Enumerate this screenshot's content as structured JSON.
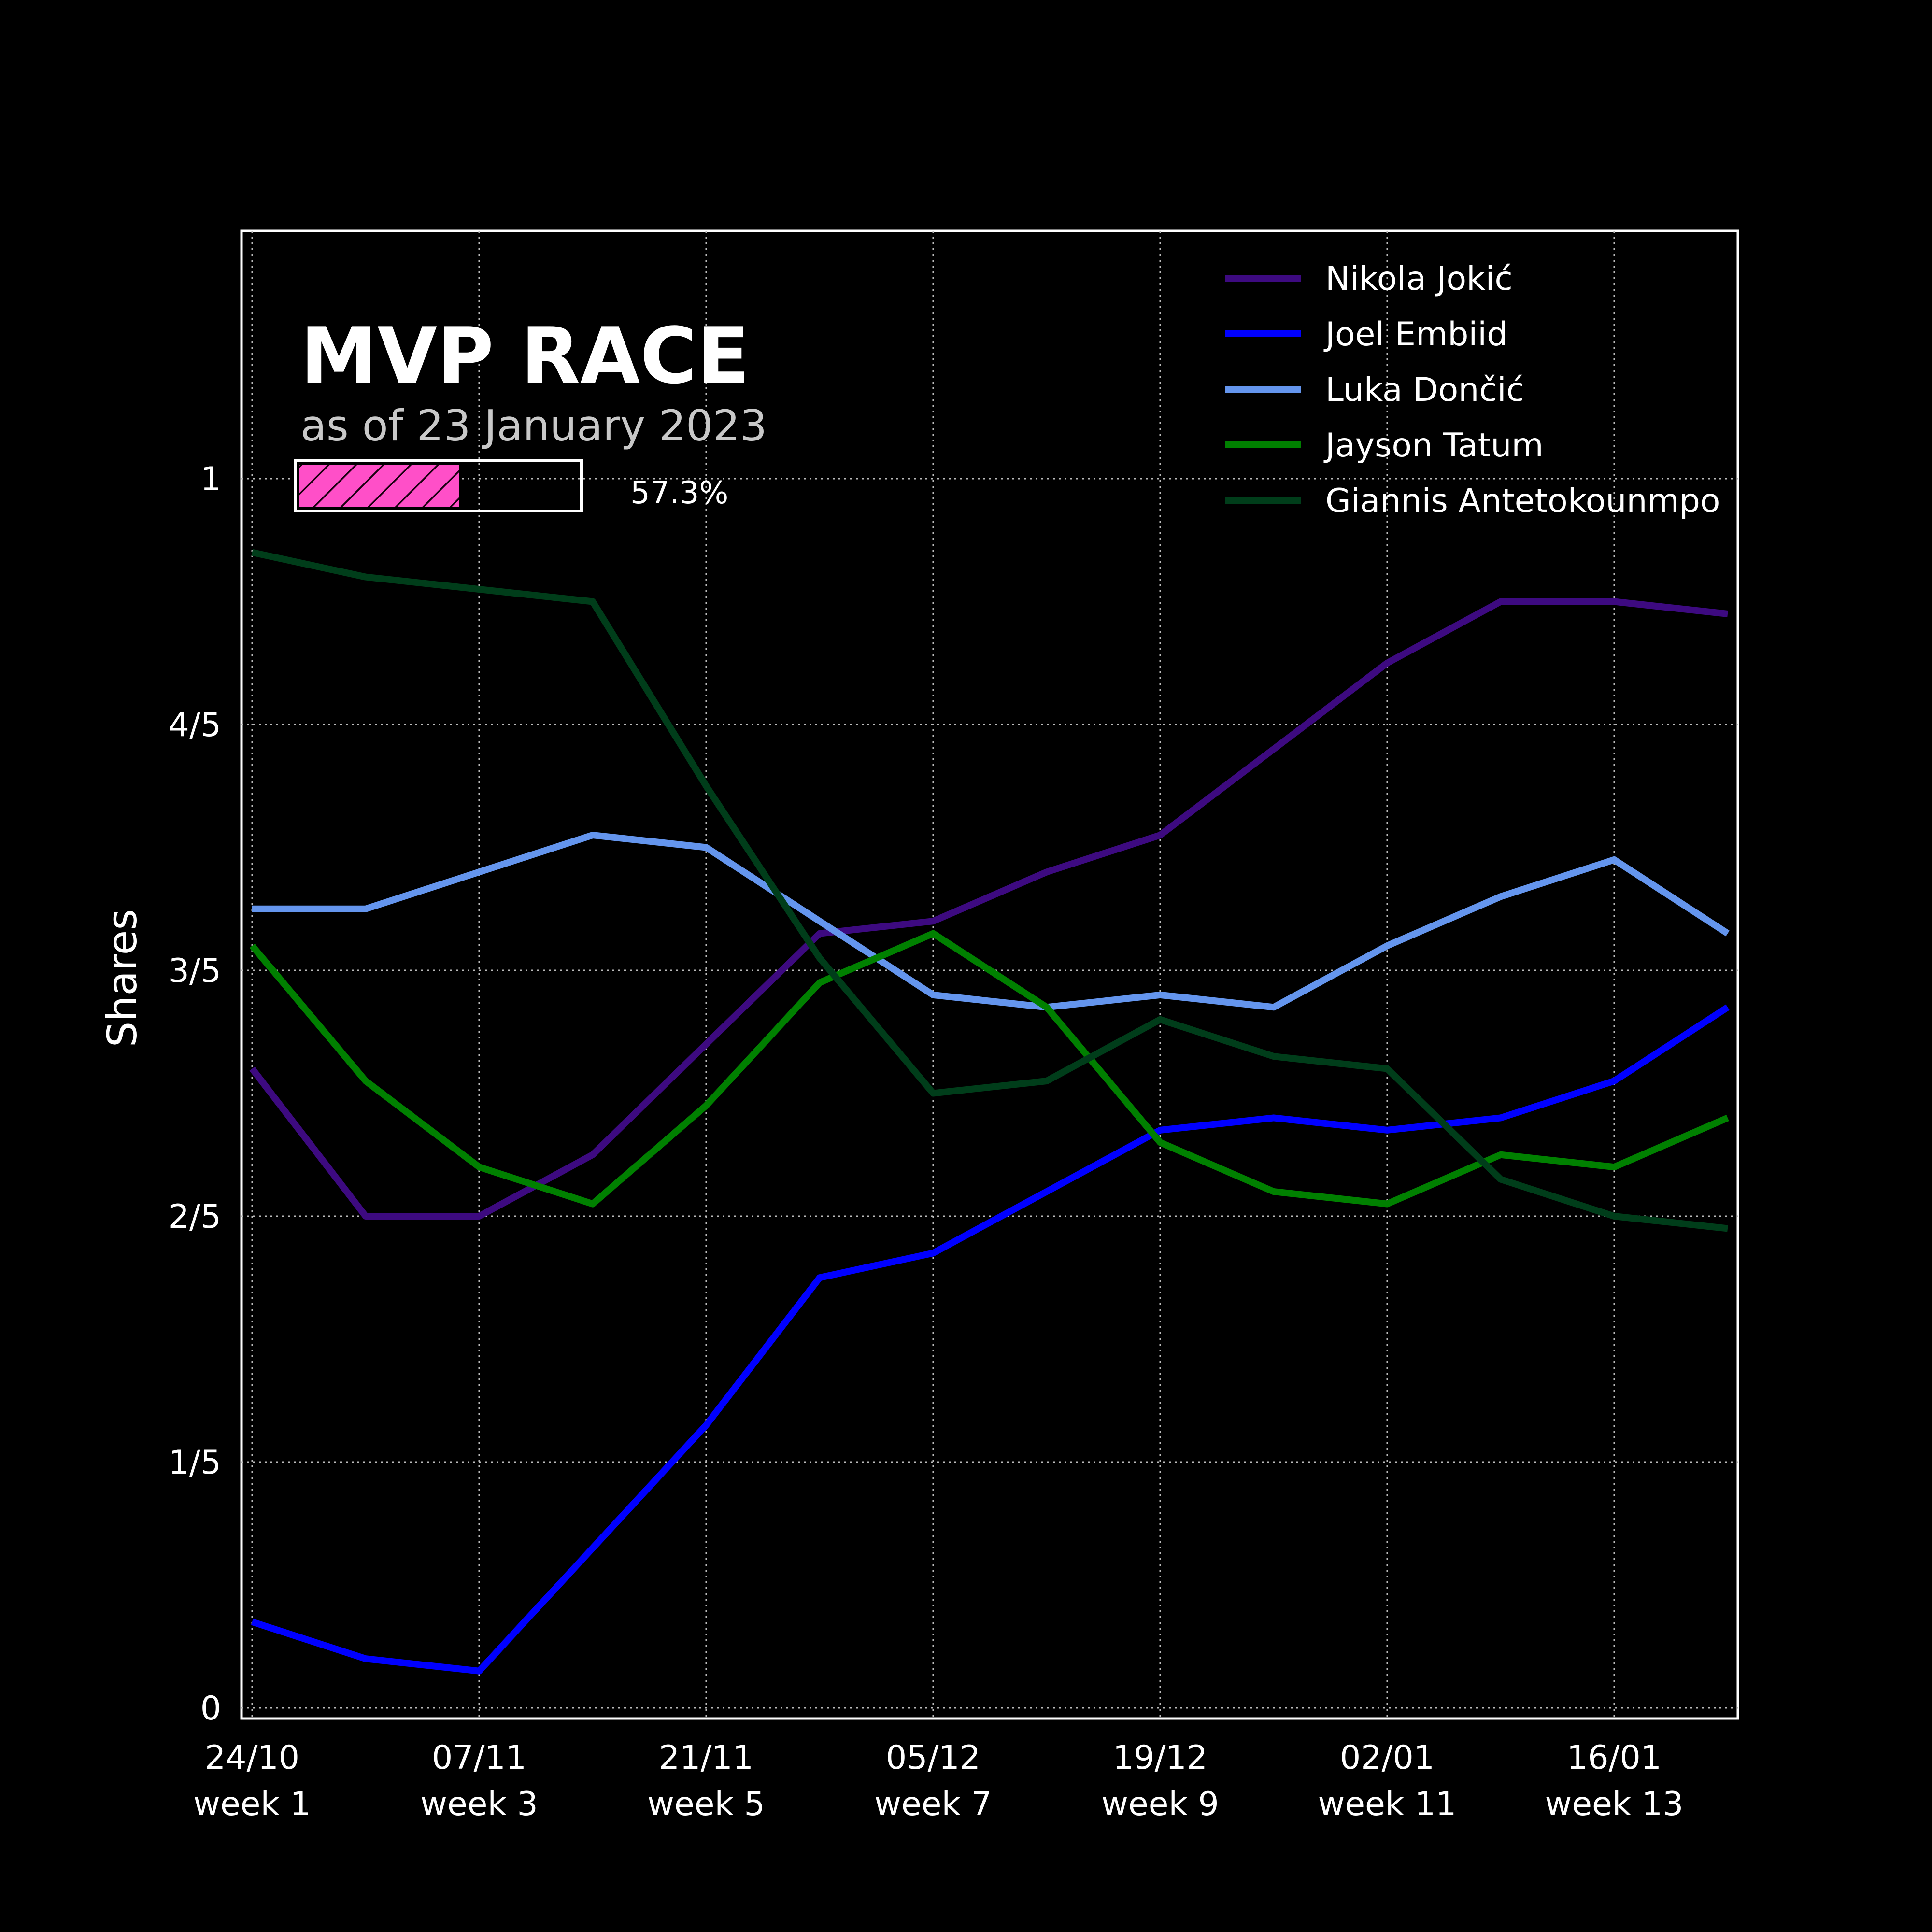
{
  "chart_data": {
    "type": "line",
    "title": "MVP RACE",
    "subtitle": "as of 23 January 2023",
    "ylabel": "Shares",
    "xlabel": "",
    "ylim": [
      0,
      1.01
    ],
    "y_ticks": [
      {
        "value": 0,
        "label": "0"
      },
      {
        "value": 0.2,
        "label": "1/5"
      },
      {
        "value": 0.4,
        "label": "2/5"
      },
      {
        "value": 0.6,
        "label": "3/5"
      },
      {
        "value": 0.8,
        "label": "4/5"
      },
      {
        "value": 1.0,
        "label": "1"
      }
    ],
    "x_ticks": [
      {
        "index": 0,
        "label1": "24/10",
        "label2": "week 1"
      },
      {
        "index": 2,
        "label1": "07/11",
        "label2": "week 3"
      },
      {
        "index": 4,
        "label1": "21/11",
        "label2": "week 5"
      },
      {
        "index": 6,
        "label1": "05/12",
        "label2": "week 7"
      },
      {
        "index": 8,
        "label1": "19/12",
        "label2": "week 9"
      },
      {
        "index": 10,
        "label1": "02/01",
        "label2": "week 11"
      },
      {
        "index": 12,
        "label1": "16/01",
        "label2": "week 13"
      }
    ],
    "x_count": 14,
    "grid": true,
    "legend_position": "top-right",
    "series": [
      {
        "name": "Nikola Jokić",
        "color": "#3d0a80",
        "values": [
          0.52,
          0.4,
          0.4,
          0.45,
          0.54,
          0.63,
          0.64,
          0.68,
          0.71,
          0.78,
          0.85,
          0.9,
          0.9,
          0.89
        ]
      },
      {
        "name": "Joel Embiid",
        "color": "#0000ff",
        "values": [
          0.07,
          0.04,
          0.03,
          0.13,
          0.23,
          0.35,
          0.37,
          0.42,
          0.47,
          0.48,
          0.47,
          0.48,
          0.51,
          0.57
        ]
      },
      {
        "name": "Luka Dončić",
        "color": "#6495ed",
        "values": [
          0.65,
          0.65,
          0.68,
          0.71,
          0.7,
          0.64,
          0.58,
          0.57,
          0.58,
          0.57,
          0.62,
          0.66,
          0.69,
          0.63
        ]
      },
      {
        "name": "Jayson Tatum",
        "color": "#008000",
        "values": [
          0.62,
          0.51,
          0.44,
          0.41,
          0.49,
          0.59,
          0.63,
          0.57,
          0.46,
          0.42,
          0.41,
          0.45,
          0.44,
          0.48
        ]
      },
      {
        "name": "Giannis Antetokounmpo",
        "color": "#003d1a",
        "values": [
          0.94,
          0.92,
          0.91,
          0.9,
          0.75,
          0.61,
          0.5,
          0.51,
          0.56,
          0.53,
          0.52,
          0.43,
          0.4,
          0.39
        ]
      }
    ],
    "progress": {
      "value": 0.573,
      "label": "57.3%",
      "color": "#ff4fc8"
    }
  }
}
